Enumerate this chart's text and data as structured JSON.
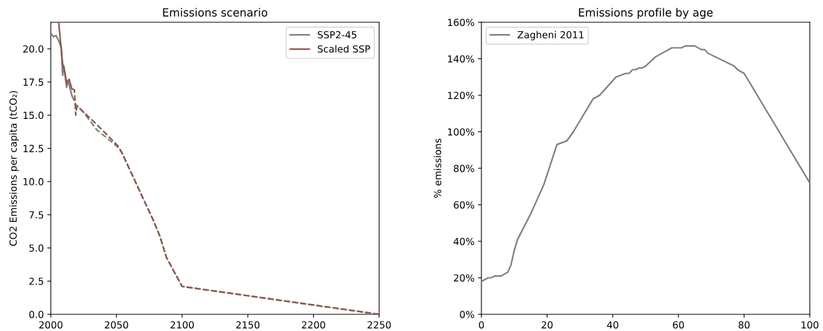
{
  "chart_data": [
    {
      "type": "line",
      "title": "Emissions scenario",
      "ylabel": "CO2 Emissions per capita (tCO₂)",
      "xlim": [
        2000,
        2250
      ],
      "xticks": [
        2000,
        2050,
        2100,
        2150,
        2200,
        2250
      ],
      "ylim": [
        0,
        22
      ],
      "yticks": [
        {
          "value": 0,
          "label": "0.0"
        },
        {
          "value": 2.5,
          "label": "2.5"
        },
        {
          "value": 5,
          "label": "5.0"
        },
        {
          "value": 7.5,
          "label": "7.5"
        },
        {
          "value": 10,
          "label": "10.0"
        },
        {
          "value": 12.5,
          "label": "12.5"
        },
        {
          "value": 15,
          "label": "15.0"
        },
        {
          "value": 17.5,
          "label": "17.5"
        },
        {
          "value": 20,
          "label": "20.0"
        }
      ],
      "legend": "top right",
      "series": [
        {
          "name": "SSP2-45",
          "color": "#7f7f7f",
          "line_style": "solid",
          "x": [
            2000,
            2002,
            2004,
            2006,
            2008,
            2009,
            2010,
            2012,
            2013,
            2015,
            2016
          ],
          "values": [
            21.2,
            20.9,
            21.0,
            20.6,
            20.1,
            18.0,
            18.7,
            17.1,
            17.6,
            16.9,
            16.5
          ]
        },
        {
          "name": "Scaled SSP",
          "color": "#8c564b",
          "line_style": "solid",
          "x": [
            2006,
            2009,
            2010,
            2011,
            2012,
            2013,
            2014,
            2016
          ],
          "values": [
            22.0,
            18.9,
            18.5,
            18.1,
            17.4,
            17.6,
            17.7,
            17.0
          ]
        },
        {
          "color": "#7f7f7f",
          "line_style": "dashed",
          "x": [
            2016,
            2019,
            2025,
            2035,
            2051,
            2054,
            2062,
            2069,
            2078,
            2083,
            2088,
            2094,
            2100,
            2250
          ],
          "values": [
            16.5,
            15.8,
            15.2,
            13.9,
            12.6,
            12.2,
            10.5,
            9.0,
            7.1,
            5.9,
            4.3,
            3.2,
            2.1,
            0.0
          ]
        },
        {
          "color": "#8c564b",
          "line_style": "dashed",
          "x": [
            2016,
            2018,
            2019,
            2020,
            2035,
            2051,
            2054,
            2062,
            2069,
            2078,
            2083,
            2088,
            2094,
            2100,
            2250
          ],
          "values": [
            17.0,
            16.9,
            15.0,
            15.7,
            14.3,
            12.7,
            12.2,
            10.5,
            9.0,
            7.1,
            5.9,
            4.3,
            3.2,
            2.1,
            0.0
          ]
        }
      ]
    },
    {
      "type": "line",
      "title": "Emissions profile by age",
      "ylabel": "% emissions",
      "xlim": [
        0,
        100
      ],
      "xticks": [
        0,
        20,
        40,
        60,
        80,
        100
      ],
      "ylim": [
        0,
        160
      ],
      "yticks": [
        {
          "value": 0,
          "label": "0%"
        },
        {
          "value": 20,
          "label": "20%"
        },
        {
          "value": 40,
          "label": "40%"
        },
        {
          "value": 60,
          "label": "60%"
        },
        {
          "value": 80,
          "label": "80%"
        },
        {
          "value": 100,
          "label": "100%"
        },
        {
          "value": 120,
          "label": "120%"
        },
        {
          "value": 140,
          "label": "140%"
        },
        {
          "value": 160,
          "label": "160%"
        }
      ],
      "legend": "top left",
      "series": [
        {
          "name": "Zagheni 2011",
          "color": "#7f7f7f",
          "line_style": "solid",
          "x": [
            0,
            2,
            3,
            4,
            6,
            8,
            9,
            10,
            11,
            13,
            15,
            17,
            19,
            21,
            23,
            26,
            28,
            30,
            33,
            34,
            36,
            38,
            40,
            41,
            44,
            45,
            46,
            47,
            48,
            49,
            50,
            53,
            55,
            58,
            61,
            62,
            65,
            67,
            68,
            69,
            77,
            78,
            80,
            100
          ],
          "values": [
            18,
            20,
            20,
            21,
            21,
            23,
            27,
            35,
            41,
            48,
            55,
            63,
            71,
            82,
            93,
            95,
            100,
            106,
            115,
            118,
            120,
            124,
            128,
            130,
            132,
            132,
            134,
            134,
            135,
            135,
            136,
            141,
            143,
            146,
            146,
            147,
            147,
            145,
            145,
            143,
            136,
            134,
            132,
            72
          ]
        }
      ]
    }
  ]
}
